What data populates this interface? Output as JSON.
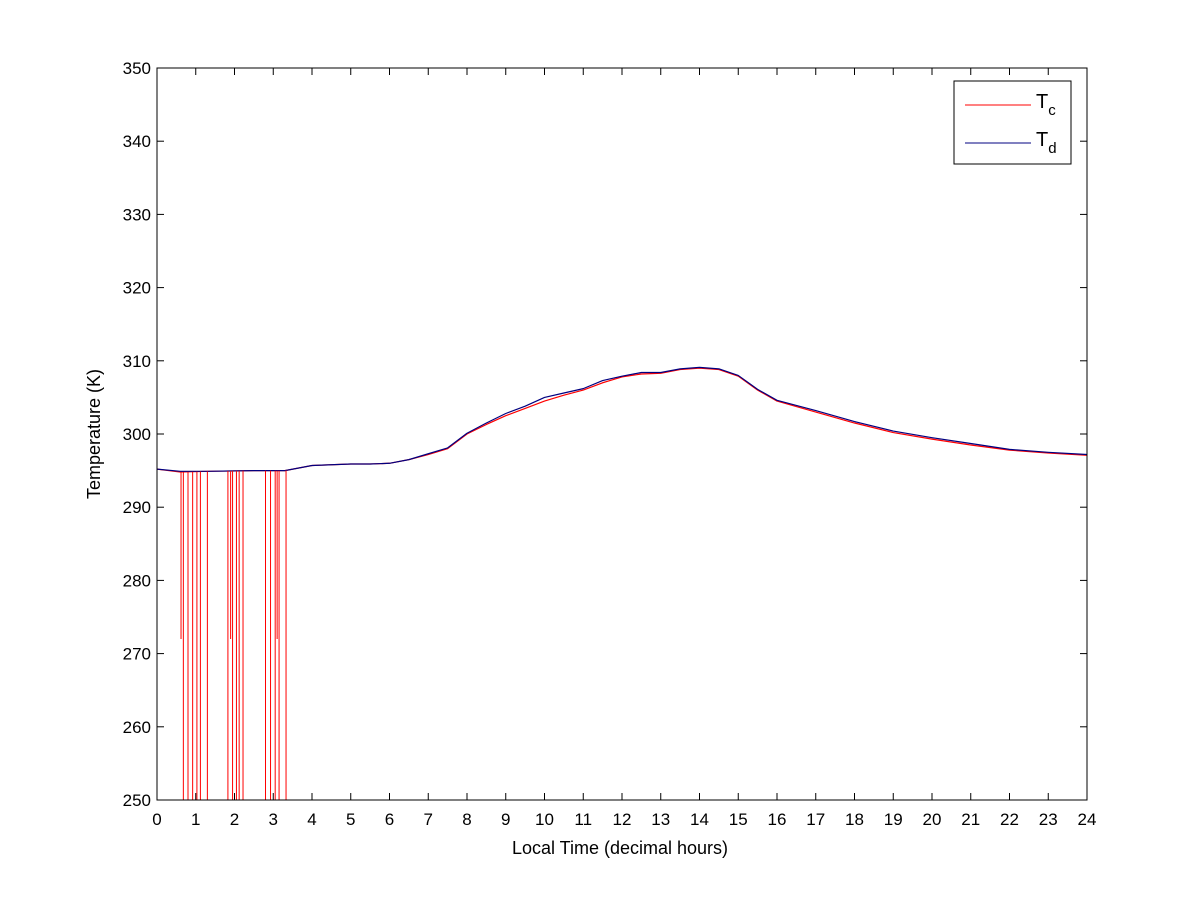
{
  "chart_data": {
    "type": "line",
    "title": "",
    "xlabel": "Local Time (decimal hours)",
    "ylabel": "Temperature (K)",
    "xlim": [
      0,
      24
    ],
    "ylim": [
      250,
      350
    ],
    "xticks": [
      0,
      1,
      2,
      3,
      4,
      5,
      6,
      7,
      8,
      9,
      10,
      11,
      12,
      13,
      14,
      15,
      16,
      17,
      18,
      19,
      20,
      21,
      22,
      23,
      24
    ],
    "yticks": [
      250,
      260,
      270,
      280,
      290,
      300,
      310,
      320,
      330,
      340,
      350
    ],
    "grid": false,
    "legend_position": "top-right",
    "series": [
      {
        "name": "T",
        "name_sub": "c",
        "color": "#ff0000",
        "x": [
          0,
          0.6,
          1.3,
          2.5,
          3.3,
          4,
          5,
          5.5,
          6,
          6.5,
          7,
          7.5,
          8,
          8.5,
          9,
          9.5,
          10,
          10.5,
          11,
          11.5,
          12,
          12.5,
          13,
          13.5,
          14,
          14.5,
          15,
          15.5,
          16,
          17,
          18,
          19,
          20,
          21,
          22,
          23,
          24
        ],
        "y": [
          295.2,
          294.8,
          294.9,
          295,
          295,
          295.7,
          295.9,
          295.9,
          296,
          296.5,
          297.2,
          298,
          300,
          301.3,
          302.5,
          303.5,
          304.5,
          305.3,
          306,
          307,
          307.8,
          308.2,
          308.3,
          308.8,
          309,
          308.8,
          307.9,
          306,
          304.5,
          303,
          301.5,
          300.2,
          299.3,
          298.5,
          297.8,
          297.4,
          297.1
        ],
        "dropouts": [
          {
            "x": 0.68,
            "y": 250
          },
          {
            "x": 0.8,
            "y": 250
          },
          {
            "x": 0.92,
            "y": 250
          },
          {
            "x": 1.03,
            "y": 250
          },
          {
            "x": 1.12,
            "y": 250
          },
          {
            "x": 1.3,
            "y": 250
          },
          {
            "x": 1.83,
            "y": 250
          },
          {
            "x": 1.95,
            "y": 250
          },
          {
            "x": 2.05,
            "y": 250
          },
          {
            "x": 2.12,
            "y": 250
          },
          {
            "x": 2.22,
            "y": 250
          },
          {
            "x": 2.8,
            "y": 250
          },
          {
            "x": 2.93,
            "y": 250
          },
          {
            "x": 3.05,
            "y": 250
          },
          {
            "x": 3.15,
            "y": 250
          },
          {
            "x": 3.33,
            "y": 250
          },
          {
            "x": 0.62,
            "y": 272
          },
          {
            "x": 1.9,
            "y": 272
          },
          {
            "x": 3.1,
            "y": 272
          }
        ]
      },
      {
        "name": "T",
        "name_sub": "d",
        "color": "#000080",
        "x": [
          0,
          0.6,
          1.3,
          2.5,
          3.3,
          4,
          5,
          5.5,
          6,
          6.5,
          7,
          7.5,
          8,
          8.5,
          9,
          9.5,
          10,
          10.5,
          11,
          11.5,
          12,
          12.5,
          13,
          13.5,
          14,
          14.5,
          15,
          15.5,
          16,
          17,
          18,
          19,
          20,
          21,
          22,
          23,
          24
        ],
        "y": [
          295.2,
          294.9,
          294.9,
          295,
          295,
          295.7,
          295.9,
          295.9,
          296,
          296.5,
          297.3,
          298.1,
          300.1,
          301.5,
          302.8,
          303.8,
          305,
          305.6,
          306.2,
          307.3,
          307.9,
          308.4,
          308.4,
          308.9,
          309.1,
          308.9,
          308,
          306.1,
          304.6,
          303.2,
          301.7,
          300.4,
          299.5,
          298.7,
          297.9,
          297.5,
          297.2
        ]
      }
    ]
  }
}
